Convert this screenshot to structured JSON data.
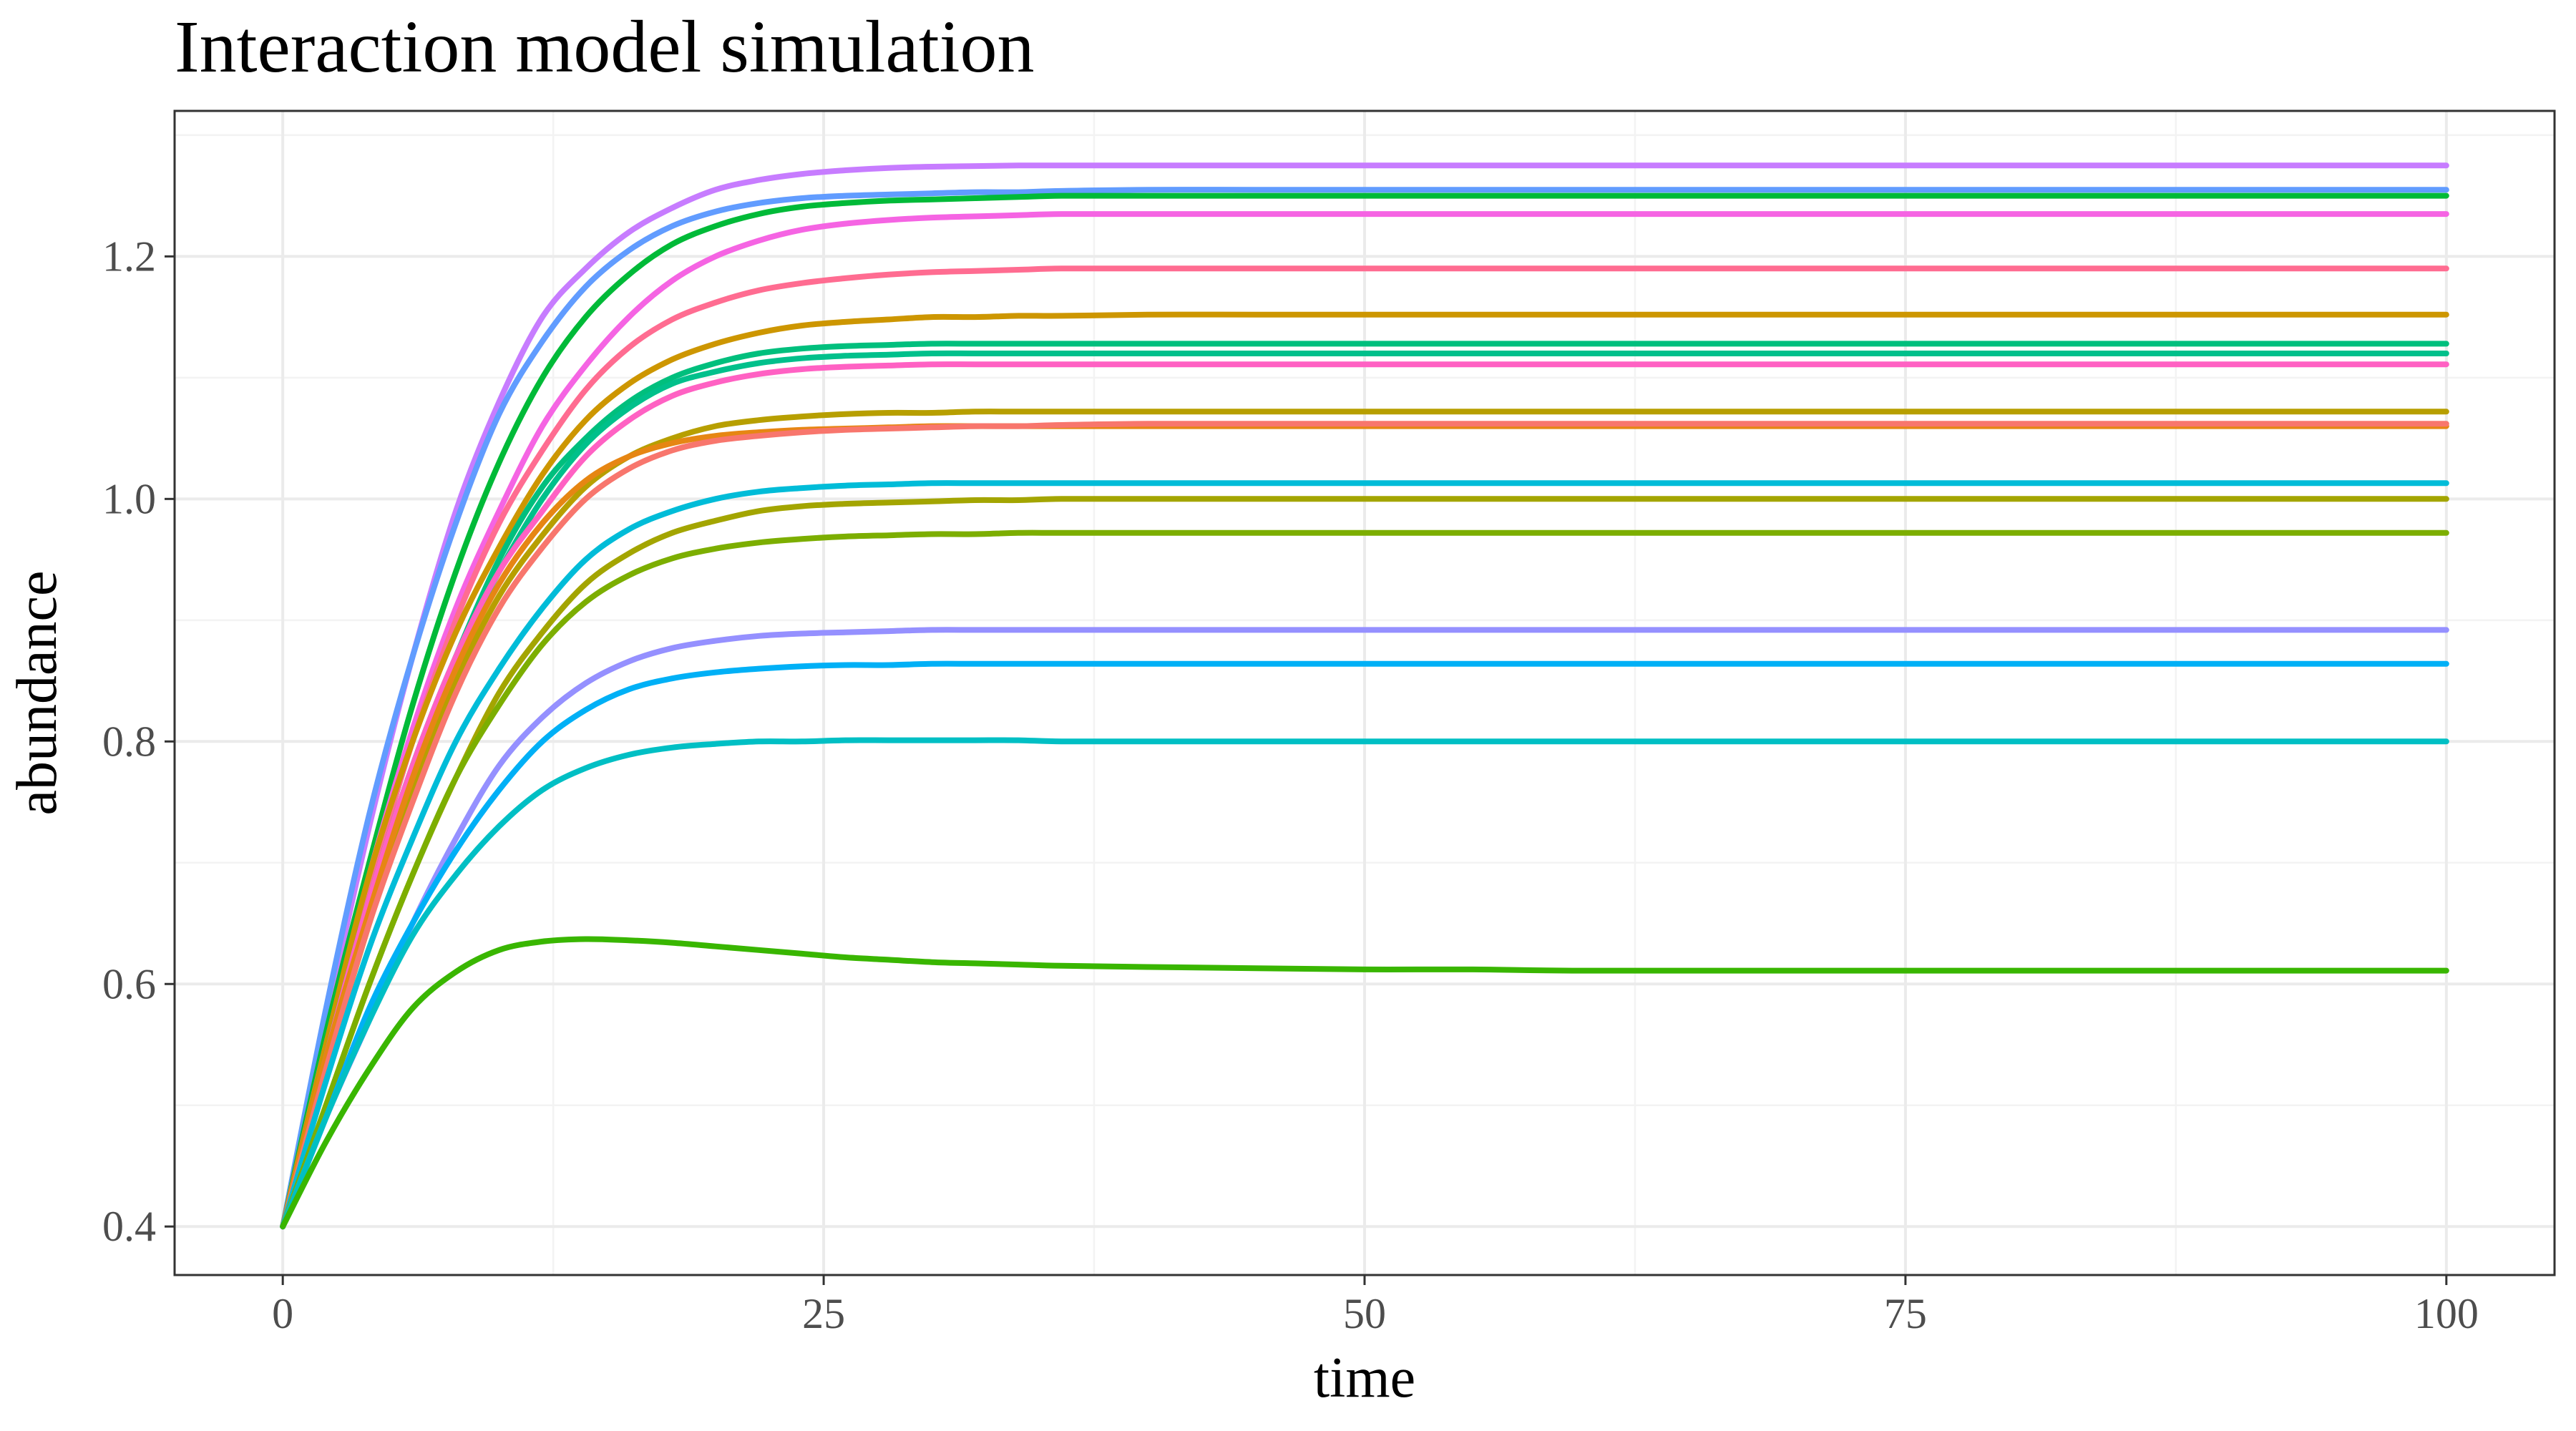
{
  "chart_data": {
    "type": "line",
    "title": "Interaction model simulation",
    "xlabel": "time",
    "ylabel": "abundance",
    "xlim": [
      -5,
      105
    ],
    "ylim": [
      0.36,
      1.32
    ],
    "x_ticks": [
      0,
      25,
      50,
      75,
      100
    ],
    "x_tick_labels": [
      "0",
      "25",
      "50",
      "75",
      "100"
    ],
    "y_ticks": [
      0.4,
      0.6,
      0.8,
      1.0,
      1.2
    ],
    "y_tick_labels": [
      "0.4",
      "0.6",
      "0.8",
      "1.0",
      "1.2"
    ],
    "grid": true,
    "legend": "none",
    "x": [
      0,
      2,
      4,
      6,
      8,
      10,
      12,
      14,
      16,
      18,
      20,
      22,
      24,
      26,
      28,
      30,
      32,
      34,
      36,
      40,
      45,
      50,
      55,
      60,
      70,
      80,
      90,
      100
    ],
    "series": [
      {
        "color": "#C77CFF",
        "values": [
          0.4,
          0.57,
          0.73,
          0.87,
          0.99,
          1.08,
          1.15,
          1.19,
          1.22,
          1.24,
          1.255,
          1.263,
          1.268,
          1.271,
          1.273,
          1.274,
          1.2745,
          1.275,
          1.275,
          1.275,
          1.275,
          1.275,
          1.275,
          1.275,
          1.275,
          1.275,
          1.275,
          1.275
        ]
      },
      {
        "color": "#619CFF",
        "values": [
          0.4,
          0.58,
          0.74,
          0.87,
          0.98,
          1.07,
          1.13,
          1.175,
          1.205,
          1.225,
          1.237,
          1.244,
          1.248,
          1.25,
          1.251,
          1.252,
          1.253,
          1.253,
          1.254,
          1.255,
          1.255,
          1.255,
          1.255,
          1.255,
          1.255,
          1.255,
          1.255,
          1.255
        ]
      },
      {
        "color": "#00BA38",
        "values": [
          0.4,
          0.56,
          0.7,
          0.83,
          0.94,
          1.03,
          1.1,
          1.15,
          1.185,
          1.21,
          1.225,
          1.235,
          1.241,
          1.244,
          1.246,
          1.247,
          1.248,
          1.249,
          1.25,
          1.25,
          1.25,
          1.25,
          1.25,
          1.25,
          1.25,
          1.25,
          1.25,
          1.25
        ]
      },
      {
        "color": "#F564E3",
        "values": [
          0.4,
          0.55,
          0.69,
          0.81,
          0.91,
          0.99,
          1.06,
          1.11,
          1.15,
          1.18,
          1.2,
          1.213,
          1.222,
          1.227,
          1.23,
          1.232,
          1.233,
          1.234,
          1.235,
          1.235,
          1.235,
          1.235,
          1.235,
          1.235,
          1.235,
          1.235,
          1.235,
          1.235
        ]
      },
      {
        "color": "#FF6C91",
        "values": [
          0.4,
          0.55,
          0.68,
          0.8,
          0.9,
          0.98,
          1.04,
          1.09,
          1.125,
          1.148,
          1.162,
          1.172,
          1.178,
          1.182,
          1.185,
          1.187,
          1.188,
          1.189,
          1.19,
          1.19,
          1.19,
          1.19,
          1.19,
          1.19,
          1.19,
          1.19,
          1.19,
          1.19
        ]
      },
      {
        "color": "#CD9600",
        "values": [
          0.4,
          0.55,
          0.69,
          0.8,
          0.89,
          0.96,
          1.02,
          1.065,
          1.095,
          1.115,
          1.128,
          1.137,
          1.143,
          1.146,
          1.148,
          1.15,
          1.15,
          1.151,
          1.151,
          1.152,
          1.152,
          1.152,
          1.152,
          1.152,
          1.152,
          1.152,
          1.152,
          1.152
        ]
      },
      {
        "color": "#00BF7D",
        "values": [
          0.4,
          0.54,
          0.67,
          0.78,
          0.87,
          0.95,
          1.01,
          1.05,
          1.08,
          1.1,
          1.112,
          1.12,
          1.124,
          1.126,
          1.127,
          1.128,
          1.128,
          1.128,
          1.128,
          1.128,
          1.128,
          1.128,
          1.128,
          1.128,
          1.128,
          1.128,
          1.128,
          1.128
        ]
      },
      {
        "color": "#00C08B",
        "values": [
          0.4,
          0.54,
          0.67,
          0.78,
          0.87,
          0.94,
          1.0,
          1.045,
          1.075,
          1.095,
          1.105,
          1.112,
          1.116,
          1.118,
          1.119,
          1.12,
          1.12,
          1.12,
          1.12,
          1.12,
          1.12,
          1.12,
          1.12,
          1.12,
          1.12,
          1.12,
          1.12,
          1.12
        ]
      },
      {
        "color": "#FF61C3",
        "values": [
          0.4,
          0.54,
          0.67,
          0.78,
          0.87,
          0.94,
          0.99,
          1.035,
          1.065,
          1.085,
          1.096,
          1.103,
          1.107,
          1.109,
          1.11,
          1.111,
          1.111,
          1.111,
          1.111,
          1.111,
          1.111,
          1.111,
          1.111,
          1.111,
          1.111,
          1.111,
          1.111,
          1.111
        ]
      },
      {
        "color": "#B79F00",
        "values": [
          0.4,
          0.53,
          0.65,
          0.76,
          0.85,
          0.92,
          0.97,
          1.01,
          1.035,
          1.05,
          1.06,
          1.065,
          1.068,
          1.07,
          1.071,
          1.071,
          1.072,
          1.072,
          1.072,
          1.072,
          1.072,
          1.072,
          1.072,
          1.072,
          1.072,
          1.072,
          1.072,
          1.072
        ]
      },
      {
        "color": "#E68613",
        "values": [
          0.4,
          0.54,
          0.66,
          0.77,
          0.86,
          0.93,
          0.98,
          1.015,
          1.035,
          1.046,
          1.052,
          1.055,
          1.057,
          1.058,
          1.059,
          1.06,
          1.06,
          1.06,
          1.06,
          1.06,
          1.06,
          1.06,
          1.06,
          1.06,
          1.06,
          1.06,
          1.06,
          1.06
        ]
      },
      {
        "color": "#F8766D",
        "values": [
          0.4,
          0.53,
          0.65,
          0.75,
          0.84,
          0.91,
          0.96,
          1.0,
          1.025,
          1.04,
          1.048,
          1.052,
          1.055,
          1.057,
          1.058,
          1.059,
          1.06,
          1.06,
          1.061,
          1.062,
          1.062,
          1.062,
          1.062,
          1.062,
          1.062,
          1.062,
          1.062,
          1.062
        ]
      },
      {
        "color": "#00BCD8",
        "values": [
          0.4,
          0.52,
          0.63,
          0.72,
          0.8,
          0.86,
          0.91,
          0.95,
          0.975,
          0.99,
          1.0,
          1.006,
          1.009,
          1.011,
          1.012,
          1.013,
          1.013,
          1.013,
          1.013,
          1.013,
          1.013,
          1.013,
          1.013,
          1.013,
          1.013,
          1.013,
          1.013,
          1.013
        ]
      },
      {
        "color": "#A3A500",
        "values": [
          0.4,
          0.5,
          0.6,
          0.69,
          0.77,
          0.84,
          0.89,
          0.93,
          0.955,
          0.972,
          0.982,
          0.99,
          0.994,
          0.996,
          0.997,
          0.998,
          0.999,
          0.999,
          1.0,
          1.0,
          1.0,
          1.0,
          1.0,
          1.0,
          1.0,
          1.0,
          1.0,
          1.0
        ]
      },
      {
        "color": "#7CAE00",
        "values": [
          0.4,
          0.5,
          0.6,
          0.69,
          0.77,
          0.83,
          0.88,
          0.915,
          0.937,
          0.951,
          0.959,
          0.964,
          0.967,
          0.969,
          0.97,
          0.971,
          0.971,
          0.972,
          0.972,
          0.972,
          0.972,
          0.972,
          0.972,
          0.972,
          0.972,
          0.972,
          0.972,
          0.972
        ]
      },
      {
        "color": "#9590FF",
        "values": [
          0.4,
          0.49,
          0.57,
          0.65,
          0.72,
          0.78,
          0.82,
          0.848,
          0.866,
          0.877,
          0.883,
          0.887,
          0.889,
          0.89,
          0.891,
          0.892,
          0.892,
          0.892,
          0.892,
          0.892,
          0.892,
          0.892,
          0.892,
          0.892,
          0.892,
          0.892,
          0.892,
          0.892
        ]
      },
      {
        "color": "#00B0F6",
        "values": [
          0.4,
          0.49,
          0.58,
          0.65,
          0.71,
          0.76,
          0.8,
          0.826,
          0.843,
          0.852,
          0.857,
          0.86,
          0.862,
          0.863,
          0.863,
          0.864,
          0.864,
          0.864,
          0.864,
          0.864,
          0.864,
          0.864,
          0.864,
          0.864,
          0.864,
          0.864,
          0.864,
          0.864
        ]
      },
      {
        "color": "#00BFC4",
        "values": [
          0.4,
          0.49,
          0.57,
          0.64,
          0.69,
          0.73,
          0.76,
          0.778,
          0.789,
          0.795,
          0.798,
          0.8,
          0.8,
          0.801,
          0.801,
          0.801,
          0.801,
          0.801,
          0.8,
          0.8,
          0.8,
          0.8,
          0.8,
          0.8,
          0.8,
          0.8,
          0.8,
          0.8
        ]
      },
      {
        "color": "#39B600",
        "values": [
          0.4,
          0.47,
          0.53,
          0.58,
          0.61,
          0.628,
          0.635,
          0.637,
          0.636,
          0.634,
          0.631,
          0.628,
          0.625,
          0.622,
          0.62,
          0.618,
          0.617,
          0.616,
          0.615,
          0.614,
          0.613,
          0.612,
          0.612,
          0.611,
          0.611,
          0.611,
          0.611,
          0.611
        ]
      }
    ]
  }
}
